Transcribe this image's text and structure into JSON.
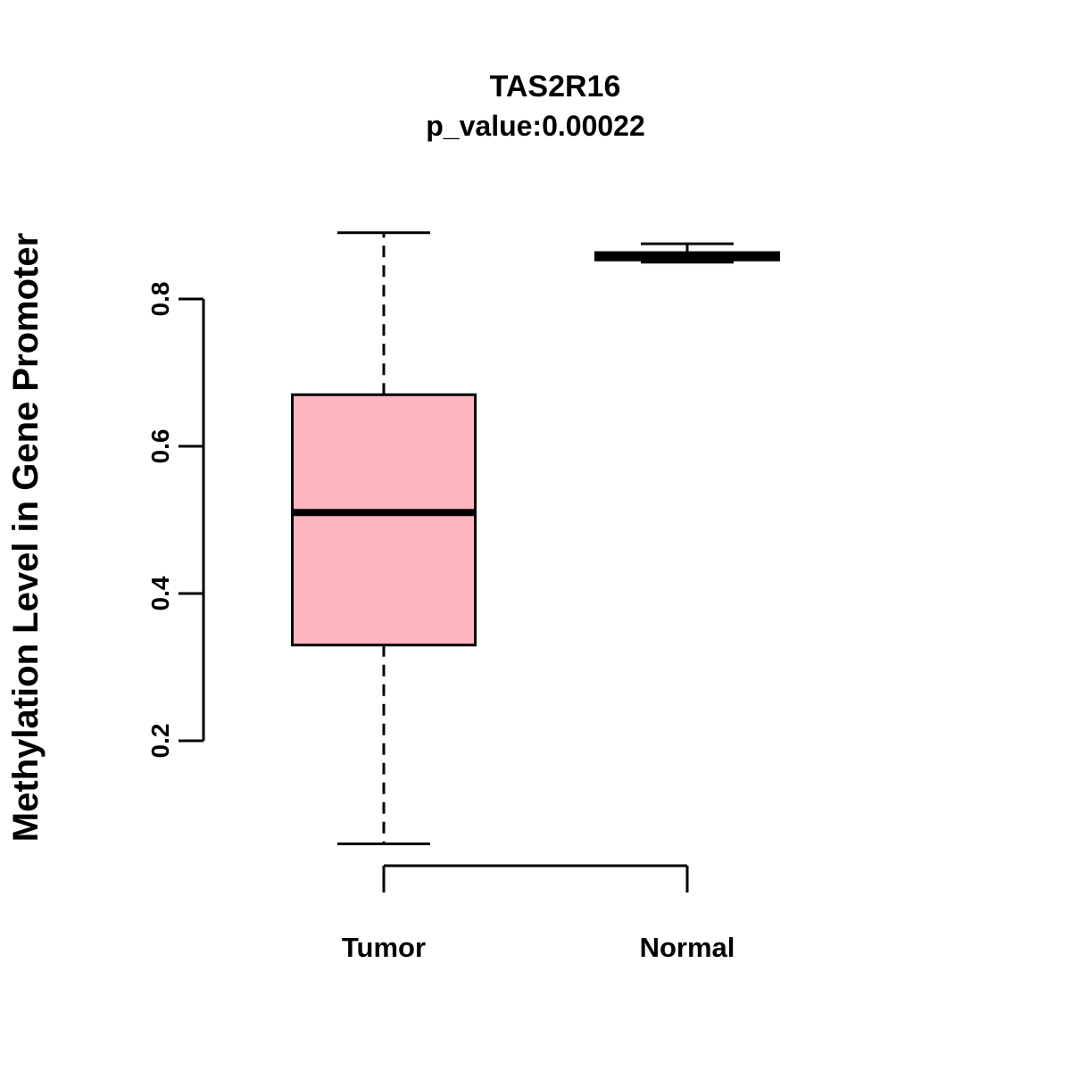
{
  "chart_data": {
    "type": "boxplot",
    "title": "TAS2R16",
    "subtitle": "p_value:0.00022",
    "ylabel": "Methylation Level in Gene Promoter",
    "xlabel": "",
    "categories": [
      "Tumor",
      "Normal"
    ],
    "series": [
      {
        "name": "Tumor",
        "lower_whisker": 0.06,
        "q1": 0.33,
        "median": 0.51,
        "q3": 0.67,
        "upper_whisker": 0.89
      },
      {
        "name": "Normal",
        "lower_whisker": 0.85,
        "q1": 0.853,
        "median": 0.858,
        "q3": 0.863,
        "upper_whisker": 0.875
      }
    ],
    "yticks": [
      0.2,
      0.4,
      0.6,
      0.8
    ],
    "ytick_labels": [
      "0.2",
      "0.4",
      "0.6",
      "0.8"
    ],
    "ylim": [
      0.05,
      0.92
    ],
    "box_fill": "#FFB6C1",
    "box_border": "#000000",
    "median_color": "#000000",
    "grid": false,
    "legend": "none"
  }
}
